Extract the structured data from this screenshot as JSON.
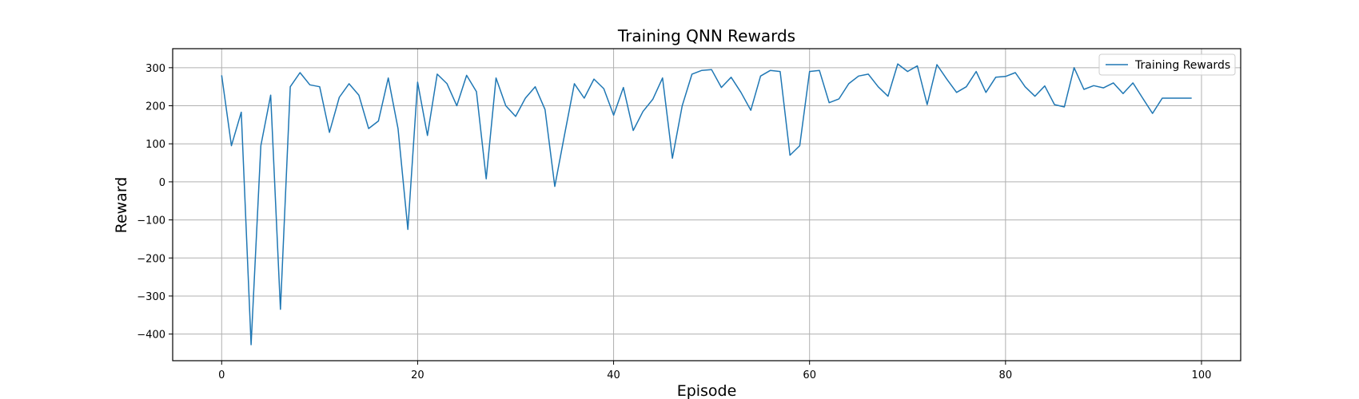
{
  "chart_data": {
    "type": "line",
    "title": "Training QNN Rewards",
    "xlabel": "Episode",
    "ylabel": "Reward",
    "xlim": [
      -5,
      104
    ],
    "ylim": [
      -470,
      350
    ],
    "xticks": [
      0,
      20,
      40,
      60,
      80,
      100
    ],
    "yticks": [
      -400,
      -300,
      -200,
      -100,
      0,
      100,
      200,
      300
    ],
    "xtick_labels": [
      "0",
      "20",
      "40",
      "60",
      "80",
      "100"
    ],
    "ytick_labels": [
      "−400",
      "−300",
      "−200",
      "−100",
      "0",
      "100",
      "200",
      "300"
    ],
    "grid": true,
    "legend_position": "top-right",
    "series": [
      {
        "name": "Training Rewards",
        "color": "#1f77b4",
        "x": [
          0,
          1,
          2,
          3,
          4,
          5,
          6,
          7,
          8,
          9,
          10,
          11,
          12,
          13,
          14,
          15,
          16,
          17,
          18,
          19,
          20,
          21,
          22,
          23,
          24,
          25,
          26,
          27,
          28,
          29,
          30,
          31,
          32,
          33,
          34,
          35,
          36,
          37,
          38,
          39,
          40,
          41,
          42,
          43,
          44,
          45,
          46,
          47,
          48,
          49,
          50,
          51,
          52,
          53,
          54,
          55,
          56,
          57,
          58,
          59,
          60,
          61,
          62,
          63,
          64,
          65,
          66,
          67,
          68,
          69,
          70,
          71,
          72,
          73,
          74,
          75,
          76,
          77,
          78,
          79,
          80,
          81,
          82,
          83,
          84,
          85,
          86,
          87,
          88,
          89,
          90,
          91,
          92,
          93,
          94,
          95,
          96,
          97,
          98,
          99
        ],
        "values": [
          280,
          95,
          183,
          -428,
          95,
          228,
          -335,
          250,
          287,
          255,
          250,
          130,
          222,
          258,
          228,
          140,
          160,
          273,
          140,
          -125,
          262,
          122,
          283,
          258,
          200,
          280,
          237,
          8,
          273,
          200,
          172,
          220,
          250,
          190,
          -12,
          125,
          258,
          220,
          270,
          245,
          175,
          248,
          135,
          185,
          217,
          273,
          62,
          200,
          283,
          293,
          295,
          248,
          275,
          235,
          188,
          278,
          293,
          290,
          70,
          95,
          290,
          293,
          208,
          218,
          258,
          278,
          283,
          250,
          225,
          310,
          290,
          305,
          203,
          308,
          270,
          235,
          250,
          290,
          235,
          275,
          277,
          287,
          250,
          225,
          252,
          203,
          197,
          300,
          243,
          253,
          247,
          260,
          232,
          260,
          220,
          180,
          220,
          220,
          220,
          220
        ]
      }
    ]
  }
}
